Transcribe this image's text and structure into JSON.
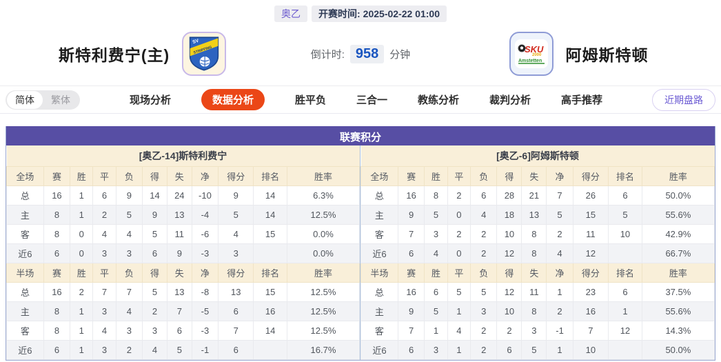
{
  "top": {
    "league": "奥乙",
    "kickoff_label": "开赛时间:",
    "kickoff_time": "2025-02-22 01:00"
  },
  "header": {
    "home_team": "斯特利费宁(主)",
    "away_team": "阿姆斯特顿",
    "home_logo": "sv-stripfing-crest",
    "away_logo": "sku-amstetten-crest",
    "countdown_label": "倒计时:",
    "countdown_value": "958",
    "countdown_unit": "分钟"
  },
  "tabs": {
    "lang": [
      {
        "label": "简体",
        "active": true
      },
      {
        "label": "繁体",
        "active": false
      }
    ],
    "items": [
      {
        "label": "现场分析",
        "active": false
      },
      {
        "label": "数据分析",
        "active": true
      },
      {
        "label": "胜平负",
        "active": false
      },
      {
        "label": "三合一",
        "active": false
      },
      {
        "label": "教练分析",
        "active": false
      },
      {
        "label": "裁判分析",
        "active": false
      },
      {
        "label": "高手推荐",
        "active": false
      }
    ],
    "recent_button": "近期盘路"
  },
  "table": {
    "title": "联赛积分",
    "columns_full": [
      "全场",
      "赛",
      "胜",
      "平",
      "负",
      "得",
      "失",
      "净",
      "得分",
      "排名",
      "胜率"
    ],
    "columns_half": [
      "半场",
      "赛",
      "胜",
      "平",
      "负",
      "得",
      "失",
      "净",
      "得分",
      "排名",
      "胜率"
    ],
    "teams": [
      {
        "name": "[奥乙-14]斯特利费宁",
        "full": [
          {
            "label": "总",
            "cells": [
              "16",
              "1",
              "6",
              "9",
              "14",
              "24",
              "-10",
              "9",
              "14",
              "6.3%"
            ]
          },
          {
            "label": "主",
            "cells": [
              "8",
              "1",
              "2",
              "5",
              "9",
              "13",
              "-4",
              "5",
              "14",
              "12.5%"
            ]
          },
          {
            "label": "客",
            "cells": [
              "8",
              "0",
              "4",
              "4",
              "5",
              "11",
              "-6",
              "4",
              "15",
              "0.0%"
            ]
          },
          {
            "label": "近6",
            "cells": [
              "6",
              "0",
              "3",
              "3",
              "6",
              "9",
              "-3",
              "3",
              "",
              "0.0%"
            ]
          }
        ],
        "half": [
          {
            "label": "总",
            "cells": [
              "16",
              "2",
              "7",
              "7",
              "5",
              "13",
              "-8",
              "13",
              "15",
              "12.5%"
            ]
          },
          {
            "label": "主",
            "cells": [
              "8",
              "1",
              "3",
              "4",
              "2",
              "7",
              "-5",
              "6",
              "16",
              "12.5%"
            ]
          },
          {
            "label": "客",
            "cells": [
              "8",
              "1",
              "4",
              "3",
              "3",
              "6",
              "-3",
              "7",
              "14",
              "12.5%"
            ]
          },
          {
            "label": "近6",
            "cells": [
              "6",
              "1",
              "3",
              "2",
              "4",
              "5",
              "-1",
              "6",
              "",
              "16.7%"
            ]
          }
        ]
      },
      {
        "name": "[奥乙-6]阿姆斯特顿",
        "full": [
          {
            "label": "总",
            "cells": [
              "16",
              "8",
              "2",
              "6",
              "28",
              "21",
              "7",
              "26",
              "6",
              "50.0%"
            ]
          },
          {
            "label": "主",
            "cells": [
              "9",
              "5",
              "0",
              "4",
              "18",
              "13",
              "5",
              "15",
              "5",
              "55.6%"
            ]
          },
          {
            "label": "客",
            "cells": [
              "7",
              "3",
              "2",
              "2",
              "10",
              "8",
              "2",
              "11",
              "10",
              "42.9%"
            ]
          },
          {
            "label": "近6",
            "cells": [
              "6",
              "4",
              "0",
              "2",
              "12",
              "8",
              "4",
              "12",
              "",
              "66.7%"
            ]
          }
        ],
        "half": [
          {
            "label": "总",
            "cells": [
              "16",
              "6",
              "5",
              "5",
              "12",
              "11",
              "1",
              "23",
              "6",
              "37.5%"
            ]
          },
          {
            "label": "主",
            "cells": [
              "9",
              "5",
              "1",
              "3",
              "10",
              "8",
              "2",
              "16",
              "1",
              "55.6%"
            ]
          },
          {
            "label": "客",
            "cells": [
              "7",
              "1",
              "4",
              "2",
              "2",
              "3",
              "-1",
              "7",
              "12",
              "14.3%"
            ]
          },
          {
            "label": "近6",
            "cells": [
              "6",
              "3",
              "1",
              "2",
              "6",
              "5",
              "1",
              "10",
              "",
              "50.0%"
            ]
          }
        ]
      }
    ]
  },
  "colors": {
    "accent_tab_red": "#eb4717",
    "table_header_purple": "#574ea4",
    "section_beige": "#f9efd9",
    "row_alt_gray": "#f2f3f6",
    "home_label_red": "#d23c2e",
    "away_label_blue": "#2848c8",
    "countdown_blue": "#1a55c0",
    "link_purple": "#6b5bd3"
  }
}
